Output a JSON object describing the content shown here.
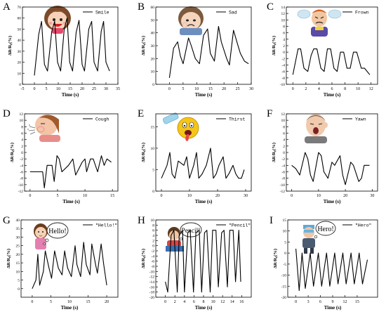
{
  "chart_data": [
    {
      "type": "line",
      "panel": "A",
      "legend": "Smile",
      "xlabel": "Time (s)",
      "ylabel": "ΔR/R₀(%)",
      "xlim": [
        -5,
        35
      ],
      "ylim": [
        0,
        70
      ],
      "xticks": [
        "-5",
        "0",
        "5",
        "10",
        "15",
        "20",
        "25",
        "30",
        "35"
      ],
      "yticks": [
        "0",
        "10",
        "20",
        "30",
        "40",
        "50",
        "60",
        "70"
      ],
      "x": [
        0,
        1.8,
        3,
        4.2,
        5.5,
        7.3,
        8.5,
        9.7,
        11,
        12.5,
        13.7,
        14.8,
        16,
        17.5,
        18.7,
        20,
        21,
        22.8,
        24,
        25,
        26.5,
        28,
        29,
        30,
        31.5
      ],
      "y": [
        8,
        45,
        57,
        18,
        12,
        48,
        57,
        20,
        12,
        50,
        60,
        20,
        12,
        47,
        58,
        18,
        12,
        50,
        57,
        20,
        12,
        48,
        57,
        20,
        12
      ]
    },
    {
      "type": "line",
      "panel": "B",
      "legend": "Sad",
      "xlabel": "Time (s)",
      "ylabel": "ΔR/R₀(%)",
      "xlim": [
        -5,
        30
      ],
      "ylim": [
        0,
        60
      ],
      "xticks": [
        "0",
        "5",
        "10",
        "15",
        "20",
        "25",
        "30"
      ],
      "yticks": [
        "0",
        "10",
        "20",
        "30",
        "40",
        "50",
        "60"
      ],
      "x": [
        0,
        1.5,
        3,
        4,
        5,
        7,
        8,
        9.5,
        11,
        12.5,
        14,
        15,
        16.5,
        18,
        19,
        21,
        22,
        23.5,
        25,
        26,
        27.5,
        29
      ],
      "y": [
        5,
        28,
        33,
        22,
        16,
        36,
        30,
        20,
        16,
        38,
        43,
        24,
        18,
        45,
        33,
        20,
        15,
        42,
        31,
        24,
        18,
        16
      ]
    },
    {
      "type": "line",
      "panel": "C",
      "legend": "Frown",
      "xlabel": "Time (s)",
      "ylabel": "ΔR/R₀(%)",
      "xlim": [
        -1,
        13
      ],
      "ylim": [
        -10,
        14
      ],
      "xticks": [
        "0",
        "2",
        "4",
        "6",
        "8",
        "10",
        "12"
      ],
      "yticks": [
        "-10",
        "-8",
        "-6",
        "-4",
        "-2",
        "0",
        "2",
        "4",
        "6",
        "8",
        "10",
        "12",
        "14"
      ],
      "x": [
        0,
        0.8,
        1.2,
        1.7,
        2.3,
        2.8,
        3.2,
        3.7,
        4.3,
        4.8,
        5.3,
        5.8,
        6.3,
        6.8,
        7.3,
        7.8,
        8.3,
        8.8,
        9.3,
        9.8,
        10.5,
        11,
        11.8
      ],
      "y": [
        -7,
        1,
        1,
        -5,
        -6,
        -1,
        1,
        1,
        -5,
        -6,
        1,
        1,
        -5,
        -6,
        0,
        0,
        -5,
        -5,
        0,
        0,
        -5,
        -5,
        -7
      ]
    },
    {
      "type": "line",
      "panel": "D",
      "legend": "Cough",
      "xlabel": "Time (s)",
      "ylabel": "ΔR/R₀(%)",
      "xlim": [
        -1,
        16
      ],
      "ylim": [
        -12,
        12
      ],
      "xticks": [
        "0",
        "5",
        "10",
        "15"
      ],
      "yticks": [
        "-12",
        "-10",
        "-8",
        "-6",
        "-4",
        "-2",
        "0",
        "2",
        "4",
        "6",
        "8",
        "10",
        "12"
      ],
      "x": [
        0,
        1.5,
        2.3,
        2.6,
        3.1,
        4,
        4.4,
        4.9,
        5.3,
        5.8,
        7,
        7.8,
        8.3,
        9.5,
        10,
        10.3,
        11,
        11.5,
        12.3,
        13,
        13.5,
        14,
        14.8
      ],
      "y": [
        -6,
        -6,
        -6,
        -11,
        -4,
        -4,
        -9,
        -1,
        -2,
        -6,
        -4,
        -2,
        -7,
        -3,
        -2,
        -6,
        -2,
        -2,
        -6,
        -1,
        -4,
        -2,
        -3
      ]
    },
    {
      "type": "line",
      "panel": "E",
      "legend": "Thirst",
      "xlabel": "Time (s)",
      "ylabel": "ΔR/R₀(%)",
      "xlim": [
        -2,
        32
      ],
      "ylim": [
        0,
        18
      ],
      "xticks": [
        "0",
        "10",
        "20",
        "30"
      ],
      "yticks": [
        "0",
        "5",
        "10",
        "15"
      ],
      "x": [
        0,
        2,
        3,
        3.8,
        4.8,
        6,
        8,
        9,
        10,
        11.5,
        12.5,
        13.3,
        14.5,
        16,
        17.5,
        18.5,
        19.5,
        20.5,
        22,
        23,
        24,
        25.5,
        26.5,
        27.5,
        28.5,
        29.5
      ],
      "y": [
        3,
        6,
        9,
        4,
        3,
        7,
        6,
        8,
        3,
        6,
        9,
        3,
        4,
        6,
        10,
        3,
        4,
        6,
        8,
        3,
        4,
        6,
        4,
        3,
        3,
        5
      ]
    },
    {
      "type": "line",
      "panel": "F",
      "legend": "Yawn",
      "xlabel": "Time (s)",
      "ylabel": "ΔR/R₀(%)",
      "xlim": [
        -2,
        32
      ],
      "ylim": [
        -12,
        12
      ],
      "xticks": [
        "0",
        "10",
        "20",
        "30"
      ],
      "yticks": [
        "-12",
        "-10",
        "-8",
        "-6",
        "-4",
        "-2",
        "0",
        "2",
        "4",
        "6",
        "8",
        "10",
        "12"
      ],
      "x": [
        0,
        1.5,
        3,
        5,
        6,
        7,
        8,
        10,
        11,
        12,
        13.5,
        15,
        16,
        18,
        19,
        20,
        22,
        23,
        25,
        26,
        27,
        28,
        29
      ],
      "y": [
        -4,
        -5,
        -7,
        0,
        -2,
        -7,
        -9,
        0,
        -1,
        -6,
        -8,
        -3,
        -4,
        -1,
        -7,
        -10,
        -3,
        -4,
        -9,
        -8,
        -4,
        -4,
        -4
      ]
    },
    {
      "type": "line",
      "panel": "G",
      "legend": "\"Hello!\"",
      "xlabel": "Time (s)",
      "ylabel": "ΔR/R₀(%)",
      "xlim": [
        -3,
        23
      ],
      "ylim": [
        -5,
        40
      ],
      "xticks": [
        "0",
        "5",
        "10",
        "15",
        "20"
      ],
      "yticks": [
        "0",
        "5",
        "10",
        "15",
        "20",
        "25",
        "30",
        "35",
        "40"
      ],
      "x": [
        0,
        1,
        1.5,
        2,
        3,
        3.5,
        4.5,
        5.2,
        6,
        7,
        8,
        8.7,
        9.5,
        10.5,
        11.5,
        12,
        13,
        13.8,
        14.5,
        15.5,
        16,
        17,
        17.5,
        18.5,
        19.2,
        20
      ],
      "y": [
        0,
        5,
        20,
        2,
        10,
        22,
        12,
        6,
        22,
        12,
        8,
        22,
        12,
        7,
        25,
        14,
        7,
        27,
        14,
        8,
        26,
        14,
        9,
        26,
        14,
        2
      ]
    },
    {
      "type": "line",
      "panel": "H",
      "legend": "\"Pencil\"",
      "xlabel": "Time (s)",
      "ylabel": "ΔR/R₀(%)",
      "xlim": [
        -2,
        18
      ],
      "ylim": [
        -20,
        10
      ],
      "xticks": [
        "0",
        "2",
        "4",
        "6",
        "8",
        "10",
        "12",
        "14",
        "16"
      ],
      "yticks": [
        "-20",
        "-18",
        "-16",
        "-14",
        "-12",
        "-10",
        "-8",
        "-6",
        "-4",
        "-2",
        "0",
        "2",
        "4",
        "6",
        "8",
        "10"
      ],
      "x": [
        0,
        0.5,
        1.2,
        1.8,
        2.5,
        2.9,
        3.6,
        4,
        4.7,
        5.2,
        5.9,
        6.4,
        7.1,
        7.6,
        8.2,
        8.7,
        9.4,
        9.9,
        10.6,
        11.1,
        11.8,
        12.3,
        13,
        13.5,
        14.2,
        14.7,
        15.4,
        15.8
      ],
      "y": [
        -14,
        -18,
        4,
        6,
        -18,
        4,
        6,
        -18,
        5,
        6,
        -18,
        5,
        6,
        -18,
        5,
        6,
        -18,
        6,
        6,
        -16,
        5,
        6,
        -16,
        6,
        6,
        -14,
        6,
        -14
      ]
    },
    {
      "type": "line",
      "panel": "I",
      "legend": "\"Hero\"",
      "xlabel": "Time (s)",
      "ylabel": "ΔR/R₀(%)",
      "xlim": [
        -2,
        20
      ],
      "ylim": [
        -20,
        15
      ],
      "xticks": [
        "0",
        "3",
        "6",
        "9",
        "12",
        "15"
      ],
      "yticks": [
        "-20",
        "-15",
        "-10",
        "-5",
        "0",
        "5",
        "10",
        "15"
      ],
      "x": [
        0,
        0.8,
        1.5,
        2.3,
        3.5,
        4.3,
        5.5,
        6.3,
        7.5,
        8.3,
        9.5,
        10.3,
        11.5,
        12.3,
        13.5,
        14.3,
        15.5,
        16.3,
        17.5
      ],
      "y": [
        2,
        -17,
        0,
        -16,
        0,
        -15,
        0,
        -15,
        0,
        -15,
        0,
        -14,
        0,
        -14,
        0,
        -14,
        0,
        -14,
        -3
      ]
    }
  ]
}
